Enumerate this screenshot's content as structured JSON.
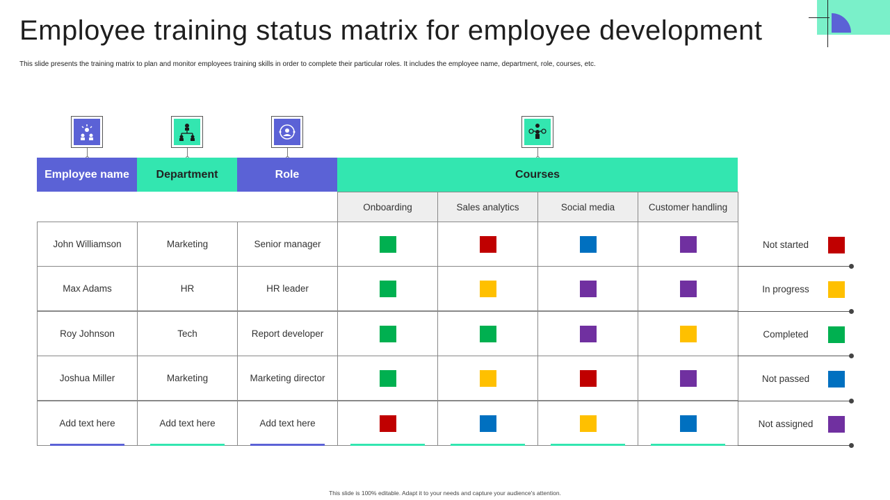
{
  "title": "Employee training status matrix for employee development",
  "subtitle": "This slide presents the training matrix to plan and monitor employees training skills in order to complete their particular roles. It includes the employee name, department, role, courses, etc.",
  "footer": "This slide is 100% editable. Adapt it to your needs and capture your audience's attention.",
  "headers": {
    "employee_name": "Employee name",
    "department": "Department",
    "role": "Role",
    "courses": "Courses"
  },
  "courses": [
    "Onboarding",
    "Sales analytics",
    "Social media",
    "Customer handling"
  ],
  "status_colors": {
    "not_started": "#c00000",
    "in_progress": "#ffc000",
    "completed": "#00b050",
    "not_passed": "#0070c0",
    "not_assigned": "#7030a0"
  },
  "rows": [
    {
      "name": "John Williamson",
      "department": "Marketing",
      "role": "Senior manager",
      "statuses": [
        "completed",
        "not_started",
        "not_passed",
        "not_assigned"
      ]
    },
    {
      "name": "Max Adams",
      "department": "HR",
      "role": "HR leader",
      "statuses": [
        "completed",
        "in_progress",
        "not_assigned",
        "not_assigned"
      ]
    },
    {
      "name": "Roy Johnson",
      "department": "Tech",
      "role": "Report developer",
      "statuses": [
        "completed",
        "completed",
        "not_assigned",
        "in_progress"
      ]
    },
    {
      "name": "Joshua Miller",
      "department": "Marketing",
      "role": "Marketing director",
      "statuses": [
        "completed",
        "in_progress",
        "not_started",
        "not_assigned"
      ]
    },
    {
      "name": "Add text here",
      "department": "Add text here",
      "role": "Add text here",
      "statuses": [
        "not_started",
        "not_passed",
        "in_progress",
        "not_passed"
      ]
    }
  ],
  "legend": [
    {
      "label": "Not started",
      "status": "not_started"
    },
    {
      "label": "In progress",
      "status": "in_progress"
    },
    {
      "label": "Completed",
      "status": "completed"
    },
    {
      "label": "Not passed",
      "status": "not_passed"
    },
    {
      "label": "Not assigned",
      "status": "not_assigned"
    }
  ],
  "icons": [
    "employee-group-icon",
    "org-chart-icon",
    "role-badge-icon",
    "courses-network-icon"
  ]
}
